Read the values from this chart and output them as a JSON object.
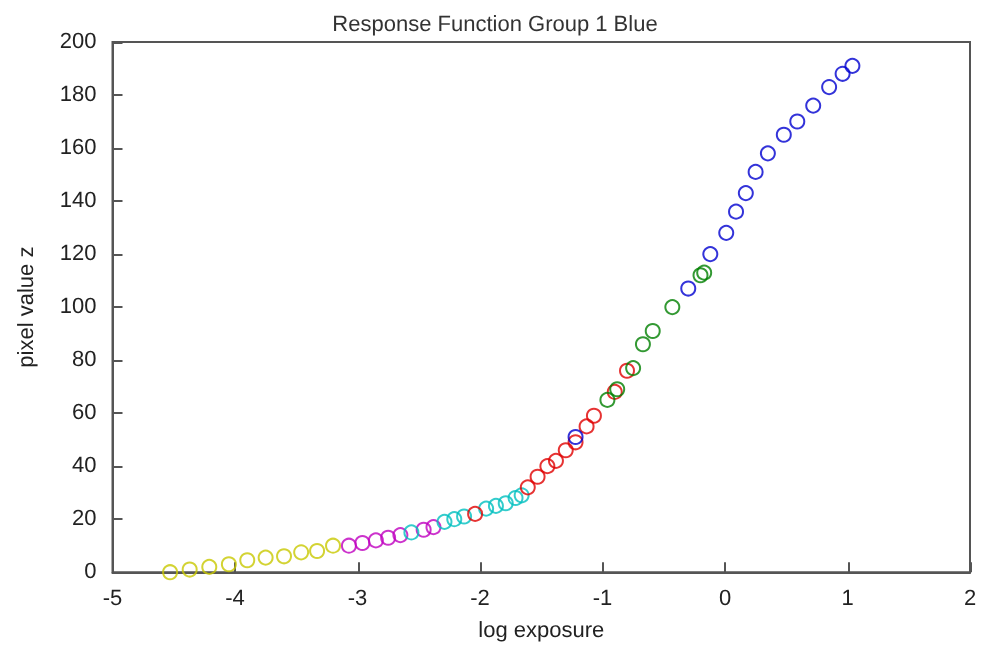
{
  "chart_data": {
    "type": "scatter",
    "title": "Response Function Group 1 Blue",
    "xlabel": "log exposure",
    "ylabel": "pixel value z",
    "xlim": [
      -5,
      2
    ],
    "xticks": [
      -5,
      -4,
      -3,
      -2,
      -1,
      0,
      1,
      2
    ],
    "ylim": [
      0,
      200
    ],
    "yticks": [
      0,
      20,
      40,
      60,
      80,
      100,
      120,
      140,
      160,
      180,
      200
    ],
    "grid": false,
    "marker": "circle",
    "series": [
      {
        "color": "#c8c800",
        "x": [
          -4.53,
          -4.37,
          -4.21,
          -4.05,
          -3.9,
          -3.75,
          -3.6,
          -3.46,
          -3.33,
          -3.2
        ],
        "values": [
          0,
          1,
          2,
          3,
          4.5,
          5.5,
          6,
          7.5,
          8,
          10
        ]
      },
      {
        "color": "#bf00bf",
        "x": [
          -3.07,
          -2.96,
          -2.85,
          -2.75,
          -2.65,
          -2.46,
          -2.38
        ],
        "values": [
          10,
          11,
          12,
          13,
          14,
          16,
          17
        ]
      },
      {
        "color": "#00bfbf",
        "x": [
          -2.56,
          -2.29,
          -2.21,
          -2.13,
          -1.95,
          -1.87,
          -1.79,
          -1.71,
          -1.66
        ],
        "values": [
          15,
          19,
          20,
          21,
          24,
          25,
          26,
          28,
          29
        ]
      },
      {
        "color": "#e00000",
        "x": [
          -2.04,
          -1.61,
          -1.53,
          -1.45,
          -1.38,
          -1.3,
          -1.22,
          -1.13,
          -1.07,
          -0.9,
          -0.8
        ],
        "values": [
          22,
          32,
          36,
          40,
          42,
          46,
          49,
          55,
          59,
          68,
          76
        ]
      },
      {
        "color": "#008000",
        "x": [
          -0.96,
          -0.88,
          -0.75,
          -0.67,
          -0.59,
          -0.43,
          -0.2,
          -0.17
        ],
        "values": [
          65,
          69,
          77,
          86,
          91,
          100,
          112,
          113
        ]
      },
      {
        "color": "#0000d0",
        "x": [
          -1.22,
          -0.3,
          -0.12,
          0.01,
          0.09,
          0.17,
          0.25,
          0.35,
          0.48,
          0.59,
          0.72,
          0.85,
          0.96,
          1.04
        ],
        "values": [
          51,
          107,
          120,
          128,
          136,
          143,
          151,
          158,
          165,
          170,
          176,
          183,
          188,
          191
        ]
      }
    ]
  }
}
